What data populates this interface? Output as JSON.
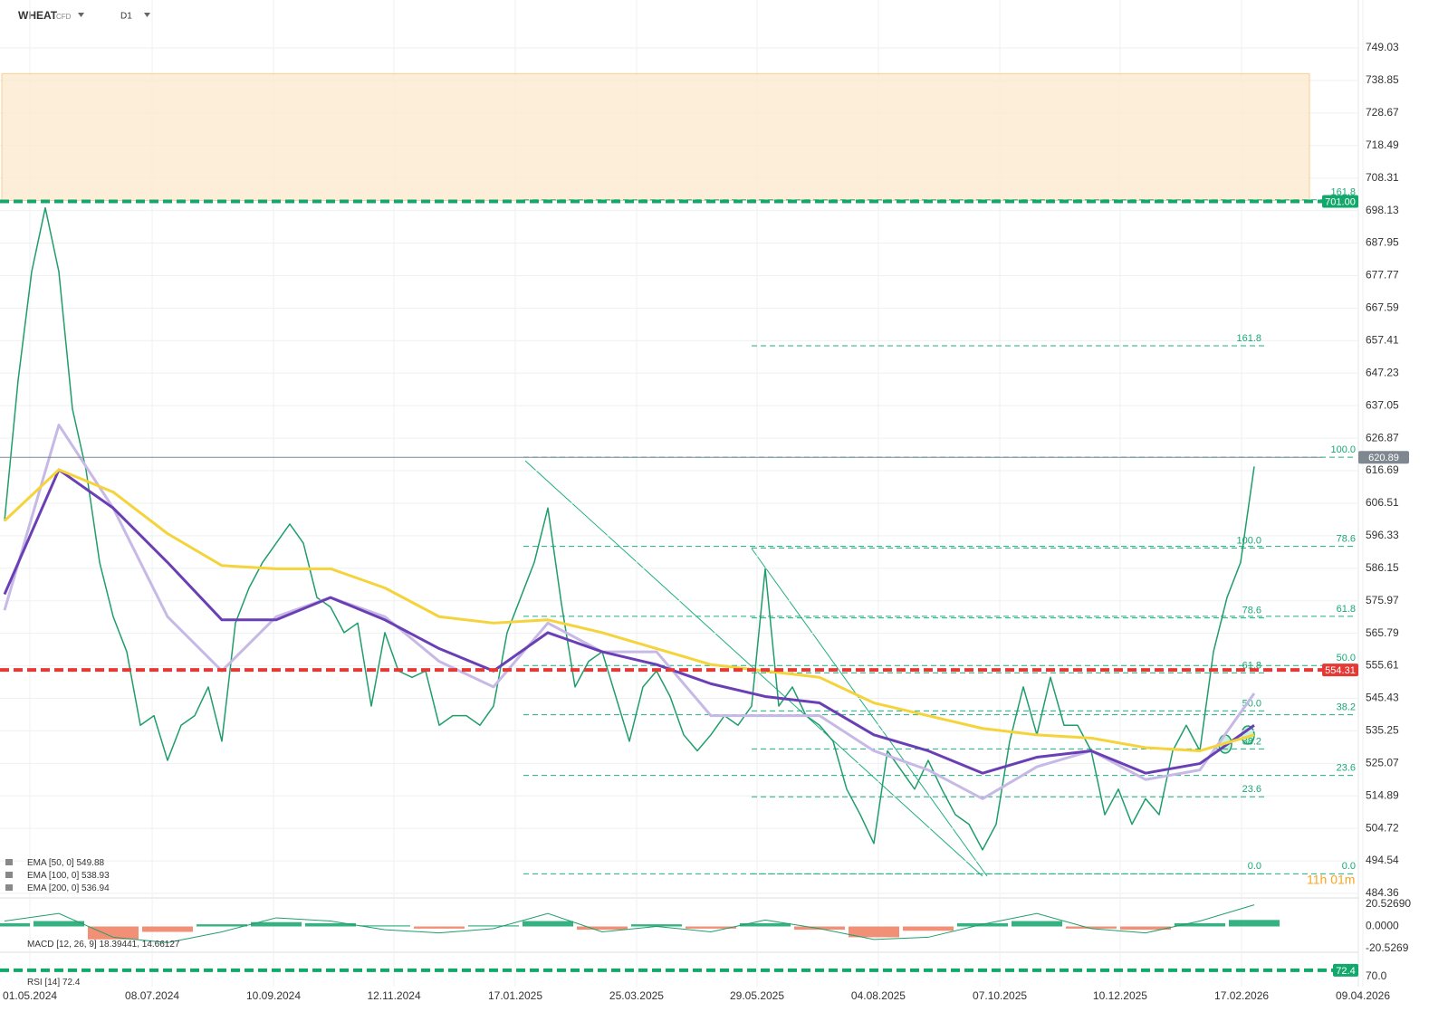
{
  "header": {
    "symbol": "WHEAT",
    "market": "CFD",
    "timeframe": "D1"
  },
  "chart_data": [
    {
      "type": "line",
      "x": [
        0,
        1,
        2,
        3,
        4,
        5,
        6,
        7,
        8,
        9,
        10,
        11,
        12,
        13,
        14,
        15,
        16,
        17,
        18,
        19,
        20,
        21,
        22,
        23,
        24,
        25,
        26,
        27,
        28,
        29,
        30,
        31,
        32,
        33,
        34,
        35,
        36,
        37,
        38,
        39,
        40,
        41,
        42,
        43,
        44,
        45,
        46,
        47,
        48,
        49,
        50,
        51,
        52,
        53,
        54,
        55,
        56,
        57,
        58,
        59,
        60,
        61,
        62,
        63,
        64,
        65,
        66,
        67,
        68,
        69,
        70,
        71,
        72,
        73,
        74,
        75,
        76,
        77,
        78,
        79,
        80,
        81,
        82,
        83,
        84,
        85,
        86,
        87,
        88,
        89,
        90,
        91,
        92
      ],
      "xlim": [
        0,
        100
      ],
      "xticks": [
        {
          "value": 1.87,
          "label": "01.05.2024"
        },
        {
          "value": 10.87,
          "label": "08.07.2024"
        },
        {
          "value": 19.8,
          "label": "10.09.2024"
        },
        {
          "value": 28.67,
          "label": "12.11.2024"
        },
        {
          "value": 37.6,
          "label": "17.01.2025"
        },
        {
          "value": 46.53,
          "label": "25.03.2025"
        },
        {
          "value": 55.4,
          "label": "29.05.2025"
        },
        {
          "value": 64.33,
          "label": "04.08.2025"
        },
        {
          "value": 73.27,
          "label": "07.10.2025"
        },
        {
          "value": 82.13,
          "label": "10.12.2025"
        },
        {
          "value": 91.07,
          "label": "17.02.2026"
        },
        {
          "value": 100,
          "label": "09.04.2026"
        }
      ],
      "ylim": [
        484.36,
        749.03
      ],
      "yticks": [
        749.03,
        738.85,
        728.67,
        718.49,
        708.31,
        698.13,
        687.95,
        677.77,
        667.59,
        657.41,
        647.23,
        637.05,
        626.87,
        616.69,
        606.51,
        596.33,
        586.15,
        575.97,
        565.79,
        555.61,
        545.43,
        535.25,
        525.07,
        514.89,
        504.72,
        494.54,
        484.36
      ],
      "grid": true,
      "series": [
        {
          "color": "#1f9d6b",
          "values": [
            601,
            645,
            679,
            699,
            679,
            636,
            617,
            588,
            571,
            560,
            537,
            540,
            526,
            537,
            540,
            549,
            532,
            569,
            580,
            588,
            594,
            600,
            594,
            577,
            574,
            566,
            569,
            543,
            566,
            554,
            552,
            554,
            537,
            540,
            540,
            537,
            543,
            566,
            577,
            588,
            605,
            575,
            549,
            557,
            560,
            546,
            532,
            549,
            554,
            546,
            534,
            529,
            534,
            540,
            537,
            543,
            586,
            543,
            549,
            540,
            537,
            532,
            517,
            509,
            500,
            529,
            523,
            517,
            526,
            517,
            509,
            506,
            498,
            506,
            532,
            549,
            534,
            552,
            537,
            537,
            529,
            509,
            517,
            506,
            514,
            509,
            529,
            537,
            529,
            560,
            577,
            588,
            618
          ]
        },
        {
          "name": "EMA [50, 0]",
          "last_value": 549.88,
          "color": "#c7b9e6",
          "x": [
            0,
            4,
            8,
            12,
            16,
            20,
            24,
            28,
            32,
            36,
            40,
            44,
            48,
            52,
            56,
            60,
            64,
            68,
            72,
            76,
            80,
            84,
            88,
            92
          ],
          "values": [
            573,
            631,
            605,
            571,
            554,
            571,
            577,
            571,
            557,
            549,
            569,
            560,
            560,
            540,
            540,
            540,
            529,
            523,
            514,
            524,
            529,
            520,
            523,
            547
          ]
        },
        {
          "name": "EMA [100, 0]",
          "last_value": 538.93,
          "color": "#6a3fb5",
          "x": [
            0,
            4,
            8,
            12,
            16,
            20,
            24,
            28,
            32,
            36,
            40,
            44,
            48,
            52,
            56,
            60,
            64,
            68,
            72,
            76,
            80,
            84,
            88,
            92
          ],
          "values": [
            578,
            617,
            605,
            588,
            570,
            570,
            577,
            570,
            561,
            554,
            566,
            560,
            556,
            550,
            546,
            544,
            534,
            529,
            522,
            527,
            529,
            522,
            525,
            537
          ]
        },
        {
          "name": "EMA [200, 0]",
          "last_value": 536.94,
          "color": "#f5d33a",
          "x": [
            0,
            4,
            8,
            12,
            16,
            20,
            24,
            28,
            32,
            36,
            40,
            44,
            48,
            52,
            56,
            60,
            64,
            68,
            72,
            76,
            80,
            84,
            88,
            92
          ],
          "values": [
            601,
            617,
            610,
            597,
            587,
            586,
            586,
            580,
            571,
            569,
            570,
            566,
            561,
            556,
            554,
            552,
            544,
            540,
            536,
            534,
            533,
            530,
            529,
            534
          ]
        }
      ],
      "zone": {
        "range": [
          701.3,
          741
        ],
        "color": "#fdebd0"
      },
      "levels": [
        {
          "value": 701,
          "label": "701.00",
          "color": "#13a86b",
          "dash": true
        },
        {
          "value": 620.89,
          "color": "#7f8790",
          "dash": false
        },
        {
          "value": 554.31,
          "label": "554.31",
          "color": "#e53935",
          "dash": true
        }
      ],
      "fibonacci": [
        {
          "levels": [
            {
              "label": "0.0",
              "price": 490.5
            },
            {
              "label": "23.6",
              "price": 521.3
            },
            {
              "label": "38.2",
              "price": 540.3
            },
            {
              "label": "50.0",
              "price": 555.7
            },
            {
              "label": "61.8",
              "price": 571.1
            },
            {
              "label": "78.6",
              "price": 593
            },
            {
              "label": "100.0",
              "price": 620.9
            },
            {
              "label": "161.8",
              "price": 701.5
            }
          ]
        },
        {
          "levels": [
            {
              "label": "0.0",
              "price": 490.5
            },
            {
              "label": "23.6",
              "price": 514.6
            },
            {
              "label": "38.2",
              "price": 529.6
            },
            {
              "label": "50.0",
              "price": 541.5
            },
            {
              "label": "61.8",
              "price": 553.4
            },
            {
              "label": "78.6",
              "price": 570.6
            },
            {
              "label": "100.0",
              "price": 592.5
            },
            {
              "label": "161.8",
              "price": 655.8
            }
          ]
        }
      ],
      "countdown": "11h 01m"
    },
    {
      "type": "macd",
      "title": "MACD [12, 26, 9]",
      "macd_value": 18.39441,
      "signal_value": 14.66127,
      "x": [
        0,
        4,
        8,
        12,
        16,
        20,
        24,
        28,
        32,
        36,
        40,
        44,
        48,
        52,
        56,
        60,
        64,
        68,
        72,
        76,
        80,
        84,
        88,
        92
      ],
      "histogram": [
        3,
        5,
        -12,
        -5,
        2,
        4,
        3,
        1,
        -2,
        1,
        5,
        -3,
        2,
        -2,
        3,
        -3,
        -10,
        -4,
        3,
        5,
        -2,
        -3,
        3,
        6
      ],
      "macd": [
        5,
        12,
        -10,
        -15,
        -5,
        8,
        5,
        -3,
        -6,
        -2,
        12,
        -5,
        0,
        -5,
        6,
        -2,
        -12,
        -10,
        2,
        12,
        -2,
        -6,
        5,
        20
      ],
      "up_color": "#12a56b",
      "down_color": "#ef7d5e",
      "line_color": "#1f9d6b",
      "ylim": [
        -20.5269,
        20.5269
      ],
      "yticks": [
        {
          "value": 20.5269,
          "label": "20.52690"
        },
        {
          "value": 0,
          "label": "0.0000"
        },
        -20.5269
      ]
    },
    {
      "type": "indicator",
      "title": "RSI [14]",
      "ylim": [
        66.2,
        78.2
      ],
      "yticks": [
        {
          "value": 70,
          "label": "70.0"
        }
      ],
      "levels": [
        {
          "value": 72.4,
          "color": "#13a86b"
        }
      ]
    }
  ]
}
